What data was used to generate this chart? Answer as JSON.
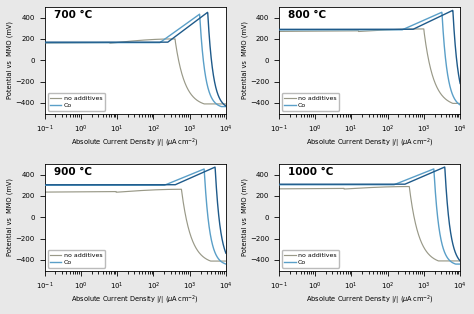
{
  "panels": [
    {
      "title": "700 °C",
      "E_corr_no_add": 160,
      "E_corr_co": 165,
      "E_lim_a_no_add": 430,
      "E_lim_a_co1": 480,
      "E_lim_a_co2": 500,
      "E_lim_c_no_add": -440,
      "E_lim_c_co1": -450,
      "E_lim_c_co2": -460,
      "j_split_no_add": 200,
      "j_split_co1": 1500,
      "j_split_co2": 2500,
      "tafel_a_no_add": 55,
      "tafel_c_no_add": 55,
      "tafel_a_co1": 60,
      "tafel_c_co1": 60,
      "tafel_a_co2": 55,
      "tafel_c_co2": 55
    },
    {
      "title": "800 °C",
      "E_corr_no_add": 270,
      "E_corr_co": 285,
      "E_lim_a_no_add": 430,
      "E_lim_a_co1": 480,
      "E_lim_a_co2": 500,
      "E_lim_c_no_add": -440,
      "E_lim_c_co1": -450,
      "E_lim_c_co2": -460,
      "j_split_no_add": 500,
      "j_split_co1": 2500,
      "j_split_co2": 5000,
      "tafel_a_no_add": 50,
      "tafel_c_no_add": 50,
      "tafel_a_co1": 55,
      "tafel_c_co1": 55,
      "tafel_a_co2": 50,
      "tafel_c_co2": 50
    },
    {
      "title": "900 °C",
      "E_corr_no_add": 235,
      "E_corr_co": 300,
      "E_lim_a_no_add": 420,
      "E_lim_a_co1": 480,
      "E_lim_a_co2": 500,
      "E_lim_c_no_add": -445,
      "E_lim_c_co1": -455,
      "E_lim_c_co2": -465,
      "j_split_no_add": 300,
      "j_split_co1": 2000,
      "j_split_co2": 4000,
      "tafel_a_no_add": 48,
      "tafel_c_no_add": 48,
      "tafel_a_co1": 52,
      "tafel_c_co1": 52,
      "tafel_a_co2": 48,
      "tafel_c_co2": 48
    },
    {
      "title": "1000 °C",
      "E_corr_no_add": 265,
      "E_corr_co": 305,
      "E_lim_a_no_add": 420,
      "E_lim_a_co1": 480,
      "E_lim_a_co2": 500,
      "E_lim_c_no_add": -445,
      "E_lim_c_co1": -455,
      "E_lim_c_co2": -465,
      "j_split_no_add": 200,
      "j_split_co1": 1500,
      "j_split_co2": 3000,
      "tafel_a_no_add": 45,
      "tafel_c_no_add": 45,
      "tafel_a_co1": 50,
      "tafel_c_co1": 50,
      "tafel_a_co2": 45,
      "tafel_c_co2": 45
    }
  ],
  "color_no_add": "#999988",
  "color_co_light": "#5a9fc8",
  "color_co_dark": "#1e5a8a",
  "xlabel": "Absolute Current Density |$j$| ($\\mu$A$\\,$cm$^{-2}$)",
  "ylabel": "Potential vs  MMO (mV)",
  "ylim": [
    -500,
    500
  ],
  "bg_color": "#e8e8e8"
}
